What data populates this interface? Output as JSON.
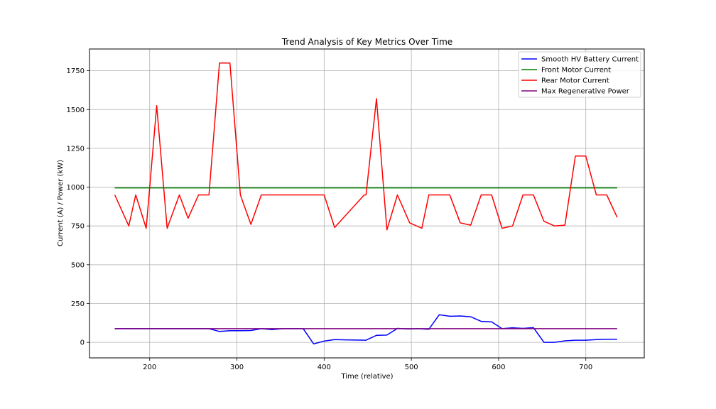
{
  "chart_data": {
    "type": "line",
    "title": "Trend Analysis of Key Metrics Over Time",
    "xlabel": "Time (relative)",
    "ylabel": "Current (A) / Power (kW)",
    "xlim": [
      131,
      767
    ],
    "ylim": [
      -100,
      1890
    ],
    "xticks": [
      200,
      300,
      400,
      500,
      600,
      700
    ],
    "yticks": [
      0,
      250,
      500,
      750,
      1000,
      1250,
      1500,
      1750
    ],
    "grid": true,
    "legend_position": "top-right",
    "series": [
      {
        "name": "Smooth HV Battery Current",
        "color": "#0000ff",
        "x": [
          160,
          268,
          280,
          292,
          304,
          316,
          328,
          340,
          352,
          364,
          376,
          388,
          400,
          412,
          424,
          436,
          448,
          460,
          472,
          484,
          496,
          508,
          520,
          532,
          544,
          556,
          568,
          580,
          592,
          604,
          616,
          628,
          640,
          652,
          664,
          676,
          688,
          700,
          712,
          724,
          736
        ],
        "y": [
          88,
          88,
          70,
          75,
          75,
          76,
          88,
          82,
          88,
          88,
          88,
          -10,
          8,
          18,
          16,
          15,
          14,
          45,
          47,
          90,
          86,
          88,
          84,
          178,
          168,
          170,
          165,
          135,
          132,
          88,
          94,
          90,
          95,
          0,
          0,
          10,
          14,
          14,
          18,
          20,
          20
        ]
      },
      {
        "name": "Front Motor Current",
        "color": "#008000",
        "x": [
          160,
          736
        ],
        "y": [
          995,
          995
        ]
      },
      {
        "name": "Rear Motor Current",
        "color": "#ff0000",
        "x": [
          160,
          176,
          184,
          196,
          208,
          220,
          234,
          244,
          256,
          268,
          280,
          292,
          304,
          316,
          328,
          400,
          412,
          446,
          448,
          460,
          472,
          484,
          498,
          512,
          520,
          544,
          556,
          568,
          580,
          592,
          604,
          616,
          628,
          640,
          652,
          664,
          676,
          688,
          700,
          712,
          724,
          736
        ],
        "y": [
          950,
          750,
          950,
          735,
          1525,
          735,
          950,
          800,
          950,
          950,
          1800,
          1800,
          950,
          760,
          950,
          950,
          740,
          950,
          950,
          1570,
          725,
          950,
          770,
          735,
          950,
          950,
          770,
          755,
          950,
          950,
          735,
          750,
          950,
          950,
          780,
          750,
          755,
          1200,
          1200,
          950,
          950,
          805
        ]
      },
      {
        "name": "Max Regenerative Power",
        "color": "#800080",
        "x": [
          160,
          736
        ],
        "y": [
          88,
          88
        ]
      }
    ]
  }
}
